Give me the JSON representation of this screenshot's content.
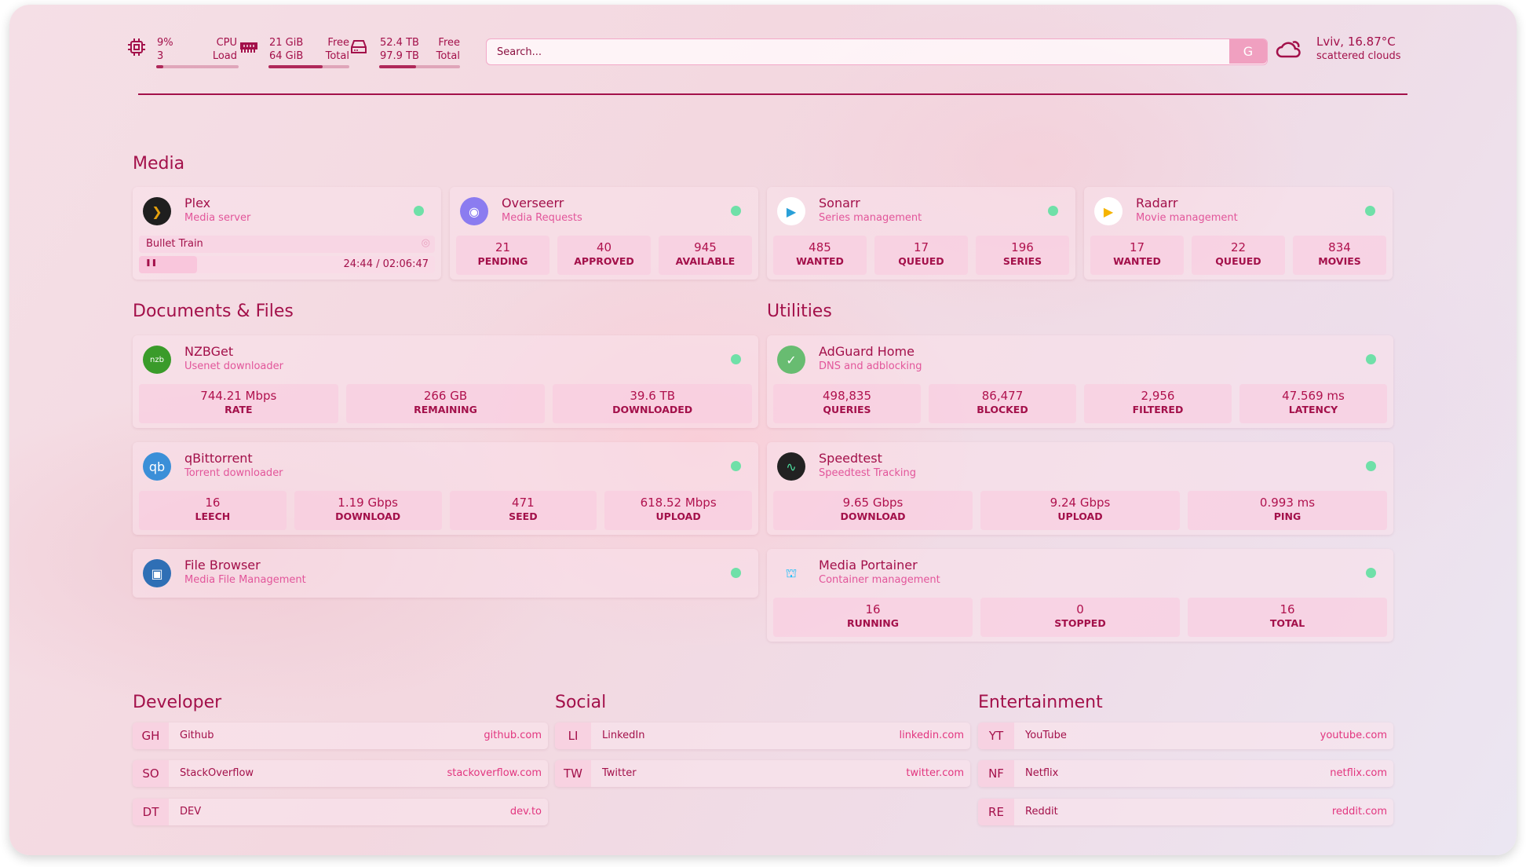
{
  "topbar": {
    "cpu": {
      "icon": "cpu-icon",
      "value": "9%",
      "sub": "3",
      "label1": "CPU",
      "label2": "Load",
      "fill": 0.09
    },
    "memory": {
      "icon": "memory-icon",
      "value": "21 GiB",
      "sub": "64 GiB",
      "label1": "Free",
      "label2": "Total",
      "fill": 0.67
    },
    "disk": {
      "icon": "disk-icon",
      "value": "52.4 TB",
      "sub": "97.9 TB",
      "label1": "Free",
      "label2": "Total",
      "fill": 0.46
    },
    "search": {
      "placeholder": "Search...",
      "engine": "G"
    },
    "weather": {
      "icon": "cloud-sun-icon",
      "location": "Lviv, 16.87°C",
      "desc": "scattered clouds"
    }
  },
  "colors": {
    "accent": "#a3104a",
    "subtitle": "#e2559a",
    "status_up": "#6fe0a8"
  },
  "media": {
    "title": "Media",
    "cards": [
      {
        "name": "Plex",
        "sub": "Media server",
        "icon": "plex-icon",
        "stream": {
          "title": "Bullet Train",
          "time": "24:44 / 02:06:47",
          "progress": 0.196
        }
      },
      {
        "name": "Overseerr",
        "sub": "Media Requests",
        "icon": "overseerr-icon",
        "stats": [
          {
            "v": "21",
            "l": "PENDING"
          },
          {
            "v": "40",
            "l": "APPROVED"
          },
          {
            "v": "945",
            "l": "AVAILABLE"
          }
        ]
      },
      {
        "name": "Sonarr",
        "sub": "Series management",
        "icon": "sonarr-icon",
        "stats": [
          {
            "v": "485",
            "l": "WANTED"
          },
          {
            "v": "17",
            "l": "QUEUED"
          },
          {
            "v": "196",
            "l": "SERIES"
          }
        ]
      },
      {
        "name": "Radarr",
        "sub": "Movie management",
        "icon": "radarr-icon",
        "stats": [
          {
            "v": "17",
            "l": "WANTED"
          },
          {
            "v": "22",
            "l": "QUEUED"
          },
          {
            "v": "834",
            "l": "MOVIES"
          }
        ]
      }
    ]
  },
  "documents": {
    "title": "Documents & Files",
    "cards": [
      {
        "name": "NZBGet",
        "sub": "Usenet downloader",
        "icon": "nzbget-icon",
        "stats": [
          {
            "v": "744.21 Mbps",
            "l": "RATE"
          },
          {
            "v": "266 GB",
            "l": "REMAINING"
          },
          {
            "v": "39.6 TB",
            "l": "DOWNLOADED"
          }
        ]
      },
      {
        "name": "qBittorrent",
        "sub": "Torrent downloader",
        "icon": "qbittorrent-icon",
        "stats": [
          {
            "v": "16",
            "l": "LEECH"
          },
          {
            "v": "1.19 Gbps",
            "l": "DOWNLOAD"
          },
          {
            "v": "471",
            "l": "SEED"
          },
          {
            "v": "618.52 Mbps",
            "l": "UPLOAD"
          }
        ]
      },
      {
        "name": "File Browser",
        "sub": "Media File Management",
        "icon": "filebrowser-icon"
      }
    ]
  },
  "utilities": {
    "title": "Utilities",
    "cards": [
      {
        "name": "AdGuard Home",
        "sub": "DNS and adblocking",
        "icon": "adguard-icon",
        "stats": [
          {
            "v": "498,835",
            "l": "QUERIES"
          },
          {
            "v": "86,477",
            "l": "BLOCKED"
          },
          {
            "v": "2,956",
            "l": "FILTERED"
          },
          {
            "v": "47.569 ms",
            "l": "LATENCY"
          }
        ]
      },
      {
        "name": "Speedtest",
        "sub": "Speedtest Tracking",
        "icon": "speedtest-icon",
        "stats": [
          {
            "v": "9.65 Gbps",
            "l": "DOWNLOAD"
          },
          {
            "v": "9.24 Gbps",
            "l": "UPLOAD"
          },
          {
            "v": "0.993 ms",
            "l": "PING"
          }
        ]
      },
      {
        "name": "Media Portainer",
        "sub": "Container management",
        "icon": "portainer-icon",
        "stats": [
          {
            "v": "16",
            "l": "RUNNING"
          },
          {
            "v": "0",
            "l": "STOPPED"
          },
          {
            "v": "16",
            "l": "TOTAL"
          }
        ]
      }
    ]
  },
  "bookmarks": [
    {
      "title": "Developer",
      "items": [
        {
          "abbr": "GH",
          "name": "Github",
          "url": "github.com"
        },
        {
          "abbr": "SO",
          "name": "StackOverflow",
          "url": "stackoverflow.com"
        },
        {
          "abbr": "DT",
          "name": "DEV",
          "url": "dev.to"
        }
      ]
    },
    {
      "title": "Social",
      "items": [
        {
          "abbr": "LI",
          "name": "LinkedIn",
          "url": "linkedin.com"
        },
        {
          "abbr": "TW",
          "name": "Twitter",
          "url": "twitter.com"
        }
      ]
    },
    {
      "title": "Entertainment",
      "items": [
        {
          "abbr": "YT",
          "name": "YouTube",
          "url": "youtube.com"
        },
        {
          "abbr": "NF",
          "name": "Netflix",
          "url": "netflix.com"
        },
        {
          "abbr": "RE",
          "name": "Reddit",
          "url": "reddit.com"
        }
      ]
    }
  ]
}
